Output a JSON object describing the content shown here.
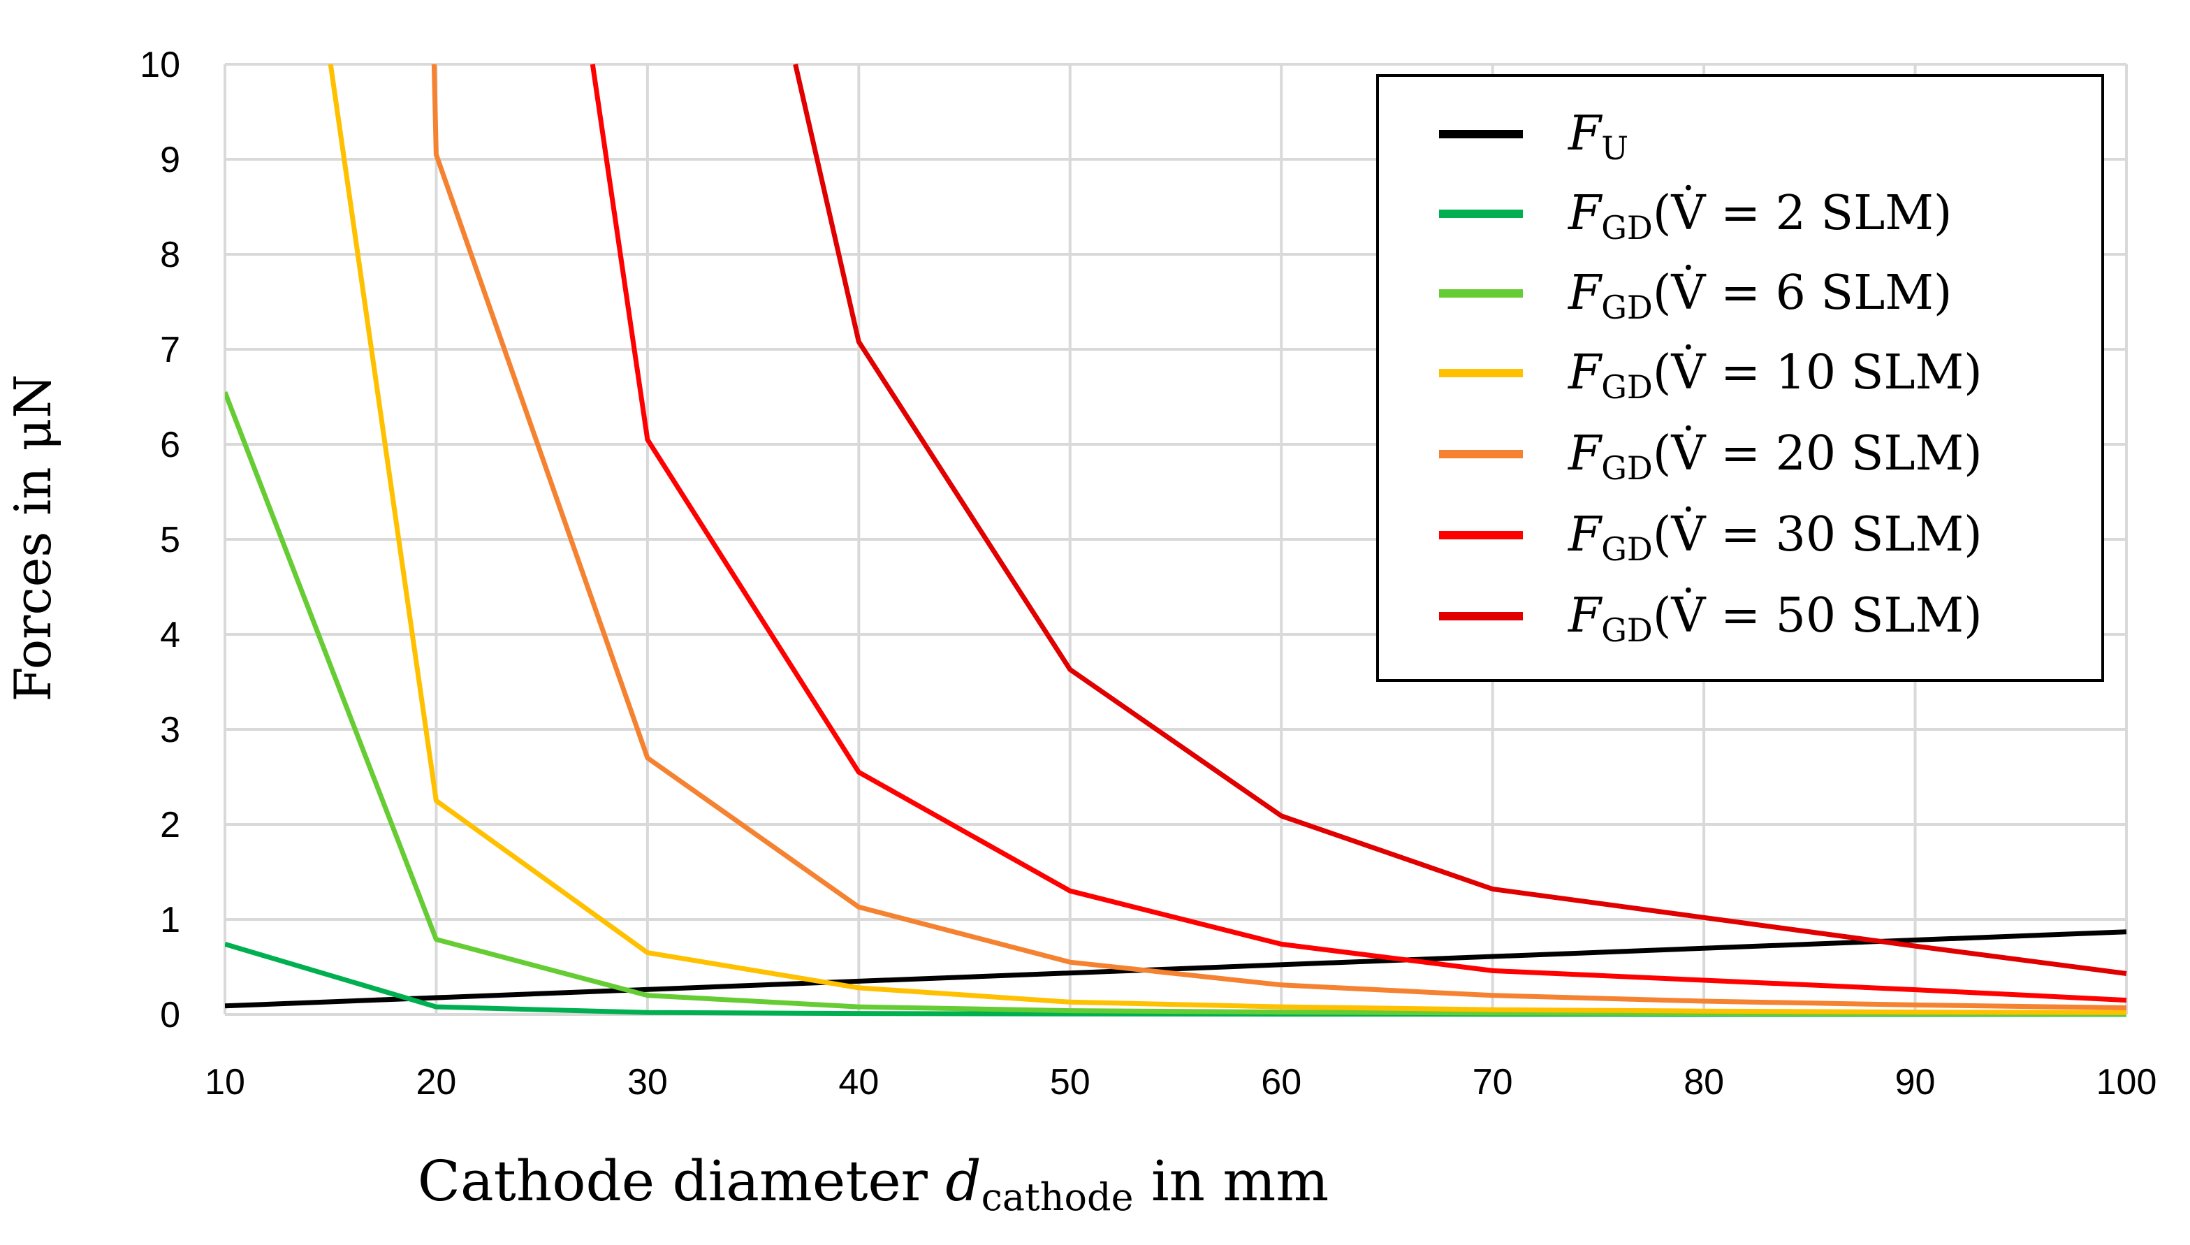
{
  "chart_data": {
    "type": "line",
    "title": "",
    "xlabel": {
      "main": "Cathode diameter ",
      "var": "d",
      "sub": "cathode",
      "tail": " in mm"
    },
    "ylabel": "Forces in μN",
    "xlim": [
      10,
      100
    ],
    "ylim": [
      0,
      10
    ],
    "x_ticks": [
      10,
      20,
      30,
      40,
      50,
      60,
      70,
      80,
      90,
      100
    ],
    "y_ticks": [
      0,
      1,
      2,
      3,
      4,
      5,
      6,
      7,
      8,
      9,
      10
    ],
    "x_tick_labels": [
      "10",
      "20",
      "30",
      "40",
      "50",
      "60",
      "70",
      "80",
      "90",
      "100"
    ],
    "y_tick_labels": [
      "0",
      "1",
      "2",
      "3",
      "4",
      "5",
      "6",
      "7",
      "8",
      "9",
      "10"
    ],
    "grid": true,
    "legend_position": "top-right",
    "series": [
      {
        "name": "F_U",
        "legend": {
          "symbol": "F",
          "sub": "U",
          "cond": ""
        },
        "color": "#000000",
        "x": [
          10,
          100
        ],
        "y": [
          0.09,
          0.87
        ]
      },
      {
        "name": "F_GD (V̇ = 2 SLM)",
        "legend": {
          "symbol": "F",
          "sub": "GD",
          "cond": "(V̇ = 2 SLM)"
        },
        "color": "#00B050",
        "x": [
          10,
          20,
          30,
          40,
          50,
          60,
          70,
          80,
          90,
          100
        ],
        "y": [
          0.74,
          0.08,
          0.02,
          0.01,
          0.005,
          0.003,
          0.002,
          0.001,
          0.001,
          0.001
        ]
      },
      {
        "name": "F_GD (V̇ = 6 SLM)",
        "legend": {
          "symbol": "F",
          "sub": "GD",
          "cond": "(V̇ = 6 SLM)"
        },
        "color": "#66CC33",
        "x": [
          10,
          20,
          30,
          40,
          50,
          60,
          70,
          80,
          90,
          100
        ],
        "y": [
          6.55,
          0.79,
          0.2,
          0.08,
          0.04,
          0.025,
          0.015,
          0.01,
          0.008,
          0.005
        ]
      },
      {
        "name": "F_GD (V̇ = 10 SLM)",
        "legend": {
          "symbol": "F",
          "sub": "GD",
          "cond": "(V̇ = 10 SLM)"
        },
        "color": "#FFC000",
        "x": [
          15,
          20,
          30,
          40,
          50,
          60,
          70,
          80,
          90,
          100
        ],
        "y": [
          10,
          2.25,
          0.65,
          0.28,
          0.13,
          0.08,
          0.05,
          0.035,
          0.025,
          0.02
        ]
      },
      {
        "name": "F_GD (V̇ = 20 SLM)",
        "legend": {
          "symbol": "F",
          "sub": "GD",
          "cond": "(V̇ = 20 SLM)"
        },
        "color": "#F58231",
        "x": [
          19.9,
          20,
          30,
          40,
          50,
          60,
          70,
          80,
          90,
          100
        ],
        "y": [
          10,
          9.05,
          2.7,
          1.13,
          0.55,
          0.31,
          0.2,
          0.14,
          0.1,
          0.07
        ]
      },
      {
        "name": "F_GD (V̇ = 30 SLM)",
        "legend": {
          "symbol": "F",
          "sub": "GD",
          "cond": "(V̇ = 30 SLM)"
        },
        "color": "#FF0000",
        "x": [
          27.4,
          30,
          40,
          50,
          60,
          70,
          80,
          90,
          100
        ],
        "y": [
          10,
          6.05,
          2.55,
          1.3,
          0.74,
          0.46,
          0.36,
          0.26,
          0.15
        ]
      },
      {
        "name": "F_GD (V̇ = 50 SLM)",
        "legend": {
          "symbol": "F",
          "sub": "GD",
          "cond": "(V̇ = 50 SLM)"
        },
        "color": "#E00000",
        "x": [
          37,
          40,
          50,
          60,
          70,
          80,
          90,
          100
        ],
        "y": [
          10,
          7.08,
          3.63,
          2.09,
          1.32,
          1.02,
          0.72,
          0.43
        ]
      }
    ]
  }
}
